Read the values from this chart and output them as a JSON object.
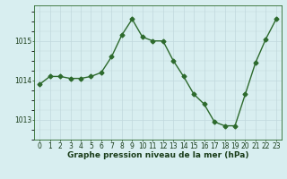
{
  "x": [
    0,
    1,
    2,
    3,
    4,
    5,
    6,
    7,
    8,
    9,
    10,
    11,
    12,
    13,
    14,
    15,
    16,
    17,
    18,
    19,
    20,
    21,
    22,
    23
  ],
  "y": [
    1013.9,
    1014.1,
    1014.1,
    1014.05,
    1014.05,
    1014.1,
    1014.2,
    1014.6,
    1015.15,
    1015.55,
    1015.1,
    1015.0,
    1015.0,
    1014.5,
    1014.1,
    1013.65,
    1013.4,
    1012.95,
    1012.85,
    1012.85,
    1013.65,
    1014.45,
    1015.05,
    1015.55
  ],
  "line_color": "#2d6a2d",
  "marker": "D",
  "markersize": 2.5,
  "linewidth": 1.0,
  "bg_color": "#d8eef0",
  "yticks": [
    1013,
    1014,
    1015
  ],
  "ylim": [
    1012.5,
    1015.9
  ],
  "xlim": [
    -0.5,
    23.5
  ],
  "xticks": [
    0,
    1,
    2,
    3,
    4,
    5,
    6,
    7,
    8,
    9,
    10,
    11,
    12,
    13,
    14,
    15,
    16,
    17,
    18,
    19,
    20,
    21,
    22,
    23
  ],
  "xlabel": "Graphe pression niveau de la mer (hPa)",
  "xlabel_fontsize": 6.5,
  "tick_fontsize": 5.5,
  "ytick_fontsize": 5.5,
  "spine_color": "#2d6a2d",
  "axis_label_color": "#1a3d1a",
  "grid_color": "#c0d8dc"
}
